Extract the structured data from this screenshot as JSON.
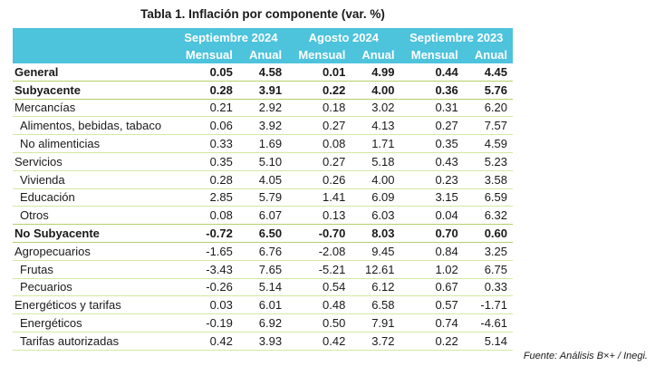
{
  "title": "Tabla 1. Inflación por componente (var. %)",
  "header": {
    "groups": [
      "Septiembre 2024",
      "Agosto 2024",
      "Septiembre 2023"
    ],
    "sub": [
      "Mensual",
      "Anual",
      "Mensual",
      "Anual",
      "Mensual",
      "Anual"
    ]
  },
  "rows": [
    {
      "label": "General",
      "v": [
        "0.05",
        "4.58",
        "0.01",
        "4.99",
        "0.44",
        "4.45"
      ]
    },
    {
      "label": "Subyacente",
      "v": [
        "0.28",
        "3.91",
        "0.22",
        "4.00",
        "0.36",
        "5.76"
      ]
    },
    {
      "label": "Mercancías",
      "v": [
        "0.21",
        "2.92",
        "0.18",
        "3.02",
        "0.31",
        "6.20"
      ]
    },
    {
      "label": "Alimentos, bebidas, tabaco",
      "v": [
        "0.06",
        "3.92",
        "0.27",
        "4.13",
        "0.27",
        "7.57"
      ]
    },
    {
      "label": "No alimenticias",
      "v": [
        "0.33",
        "1.69",
        "0.08",
        "1.71",
        "0.35",
        "4.59"
      ]
    },
    {
      "label": "Servicios",
      "v": [
        "0.35",
        "5.10",
        "0.27",
        "5.18",
        "0.43",
        "5.23"
      ]
    },
    {
      "label": "Vivienda",
      "v": [
        "0.28",
        "4.05",
        "0.26",
        "4.00",
        "0.23",
        "3.58"
      ]
    },
    {
      "label": "Educación",
      "v": [
        "2.85",
        "5.79",
        "1.41",
        "6.09",
        "3.15",
        "6.59"
      ]
    },
    {
      "label": "Otros",
      "v": [
        "0.08",
        "6.07",
        "0.13",
        "6.03",
        "0.04",
        "6.32"
      ]
    },
    {
      "label": "No Subyacente",
      "v": [
        "-0.72",
        "6.50",
        "-0.70",
        "8.03",
        "0.70",
        "0.60"
      ]
    },
    {
      "label": "Agropecuarios",
      "v": [
        "-1.65",
        "6.76",
        "-2.08",
        "9.45",
        "0.84",
        "3.25"
      ]
    },
    {
      "label": "Frutas",
      "v": [
        "-3.43",
        "7.65",
        "-5.21",
        "12.61",
        "1.02",
        "6.75"
      ]
    },
    {
      "label": "Pecuarios",
      "v": [
        "-0.26",
        "5.14",
        "0.54",
        "6.12",
        "0.67",
        "0.33"
      ]
    },
    {
      "label": "Energéticos y tarifas",
      "v": [
        "0.03",
        "6.01",
        "0.48",
        "6.58",
        "0.57",
        "-1.71"
      ]
    },
    {
      "label": "Energéticos",
      "v": [
        "-0.19",
        "6.92",
        "0.50",
        "7.91",
        "0.74",
        "-4.61"
      ]
    },
    {
      "label": "Tarifas autorizadas",
      "v": [
        "0.42",
        "3.93",
        "0.42",
        "3.72",
        "0.22",
        "5.14"
      ]
    }
  ],
  "source": "Fuente: Análisis B×+ /  Inegi."
}
